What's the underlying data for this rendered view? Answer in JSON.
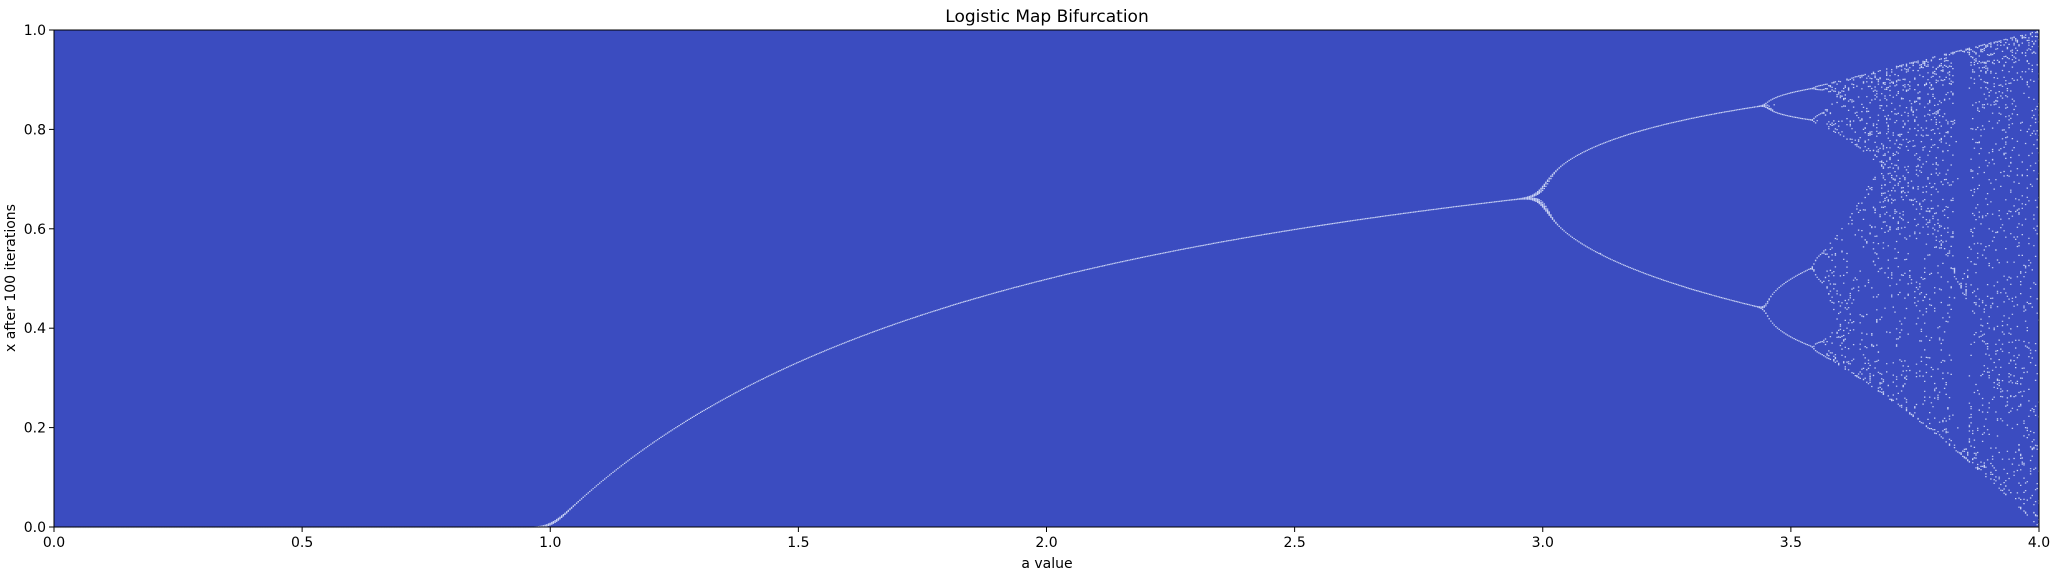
{
  "chart_data": {
    "type": "heatmap",
    "title": "Logistic Map Bifurcation",
    "xlabel": "a value",
    "ylabel": "x after 100 iterations",
    "xlim": [
      0.0,
      4.0
    ],
    "ylim": [
      0.0,
      1.0
    ],
    "x_ticks": [
      0.0,
      0.5,
      1.0,
      1.5,
      2.0,
      2.5,
      3.0,
      3.5,
      4.0
    ],
    "x_tick_labels": [
      "0.0",
      "0.5",
      "1.0",
      "1.5",
      "2.0",
      "2.5",
      "3.0",
      "3.5",
      "4.0"
    ],
    "y_ticks": [
      0.0,
      0.2,
      0.4,
      0.6,
      0.8,
      1.0
    ],
    "y_tick_labels": [
      "0.0",
      "0.2",
      "0.4",
      "0.6",
      "0.8",
      "1.0"
    ],
    "grid": false,
    "colormap": "coolwarm",
    "background_color": "#3b4cc0",
    "density_color": "#dfe7fb",
    "iterations": 100,
    "bifurcation_points": [
      1.0,
      3.0,
      3.449,
      3.544,
      3.5699
    ]
  }
}
